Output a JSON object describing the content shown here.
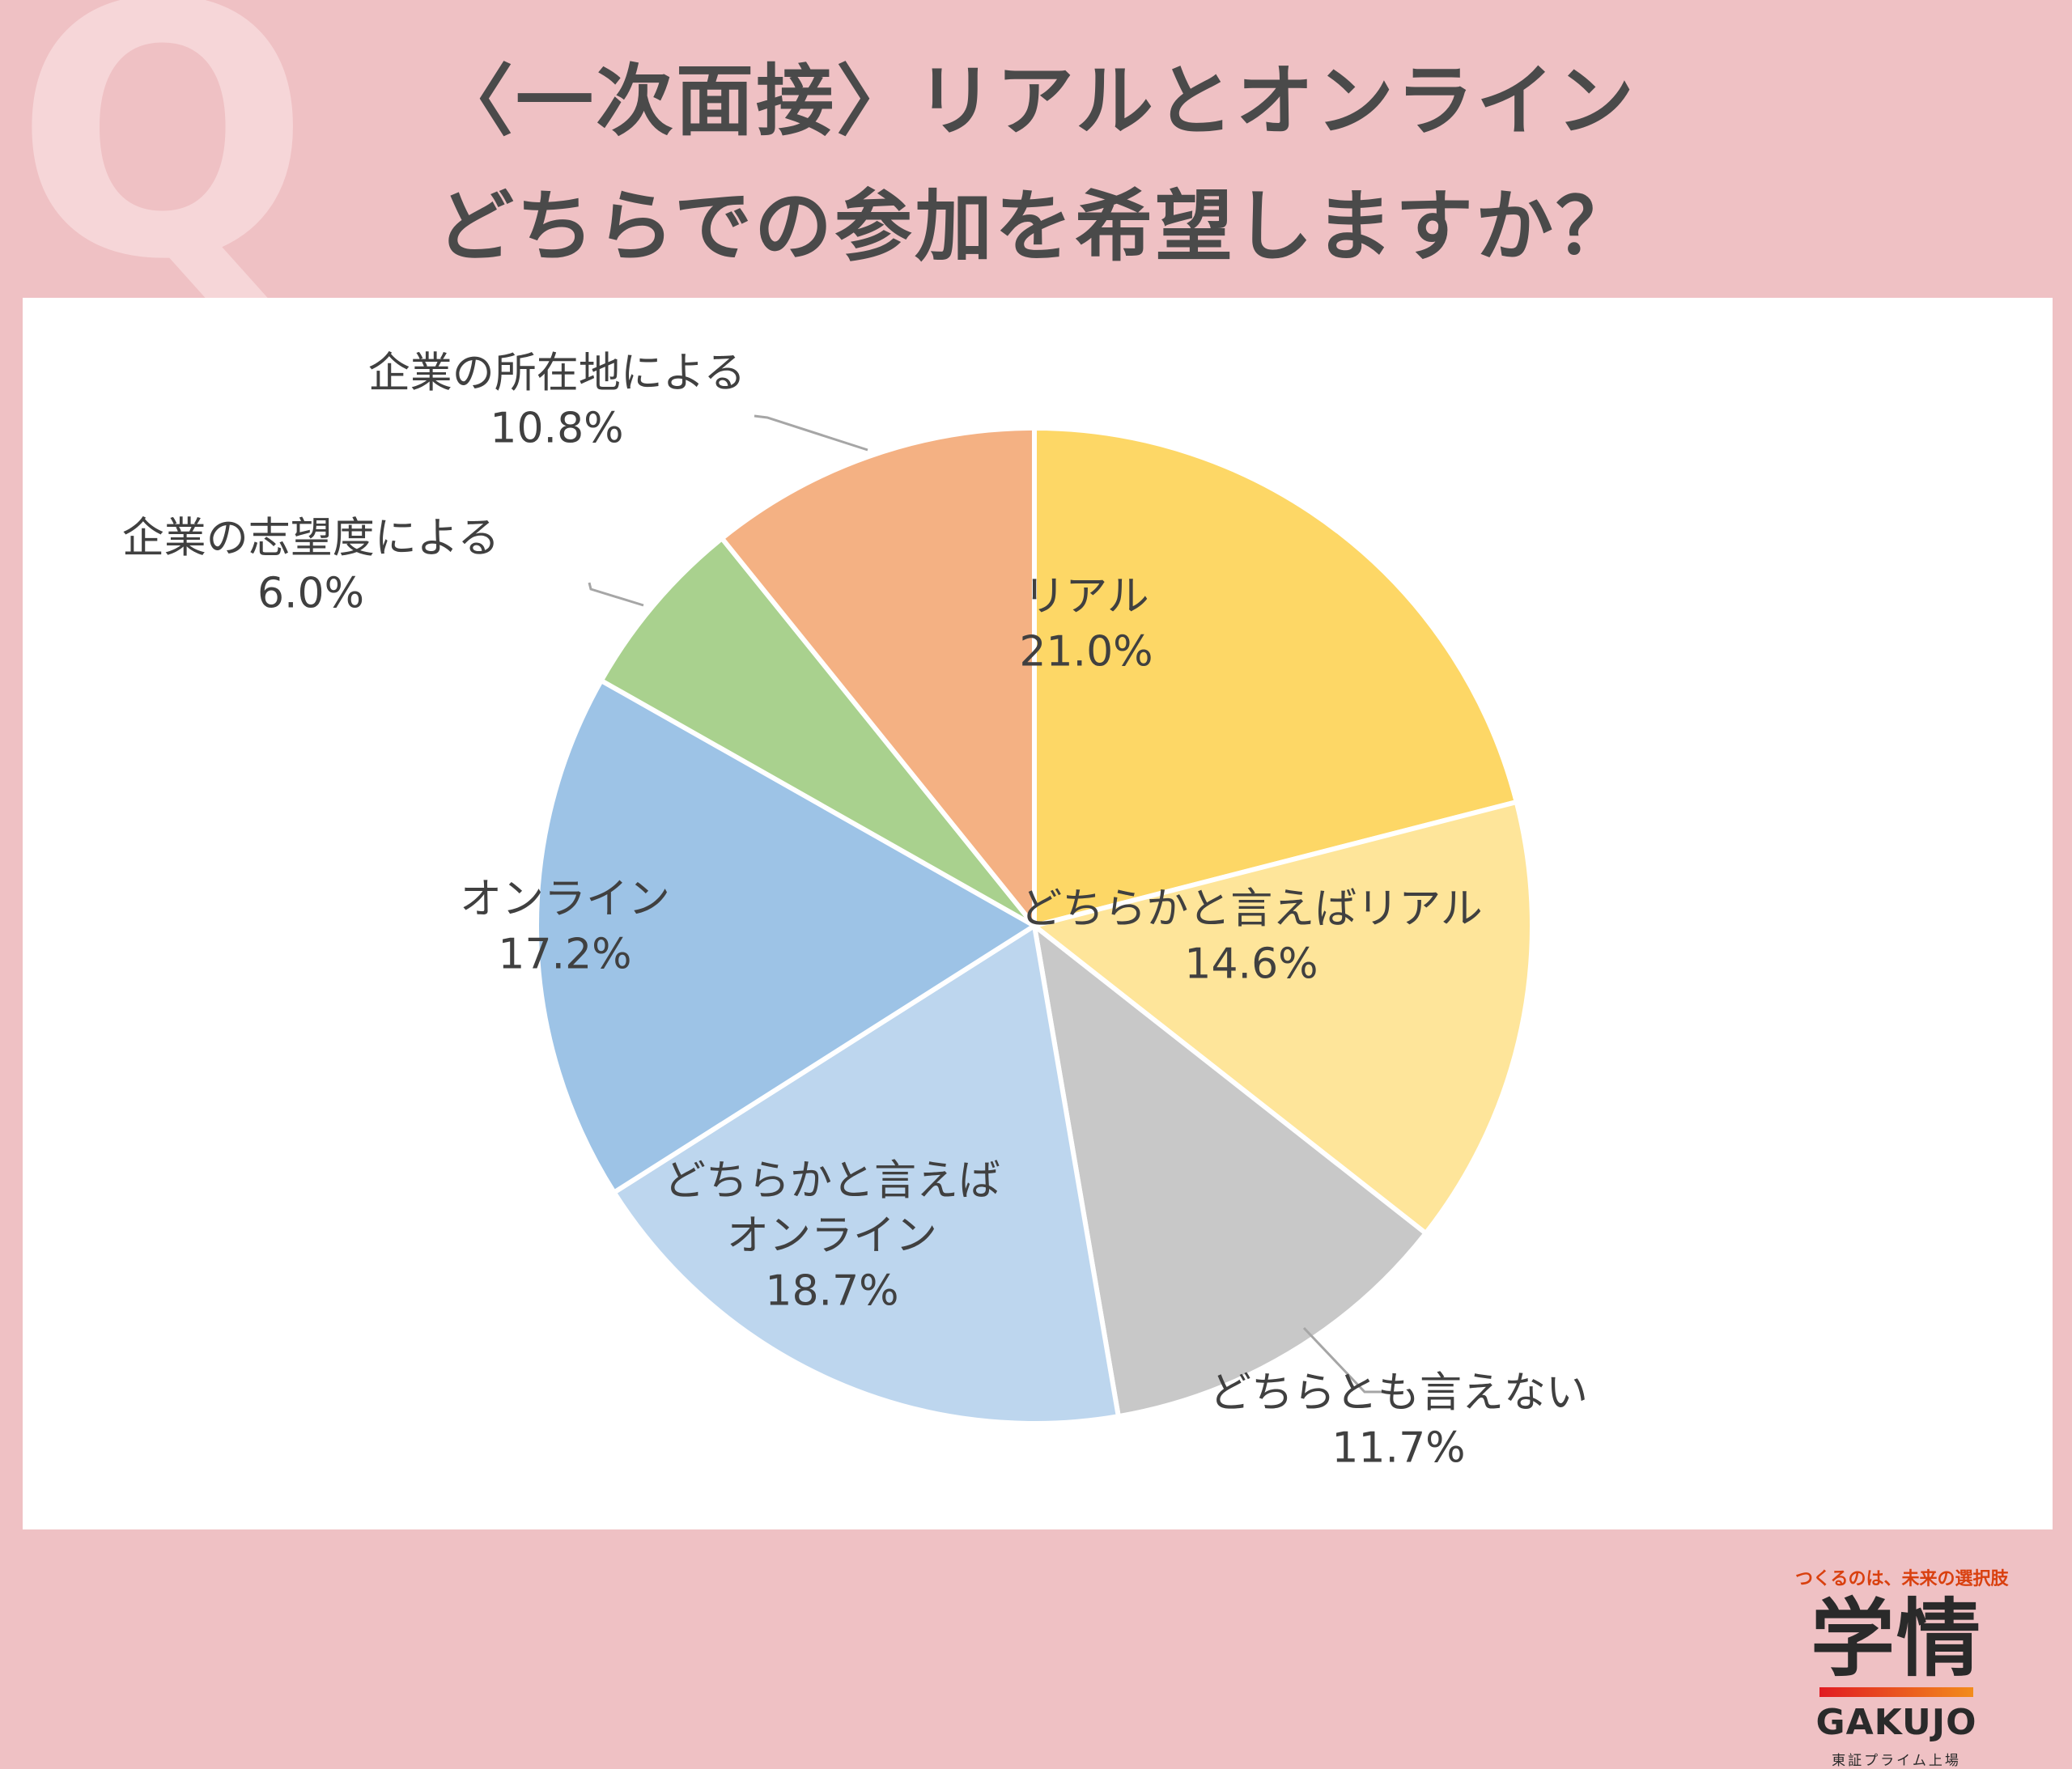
{
  "header": {
    "q_mark": "Q",
    "title_line1": "〈一次面接〉リアルとオンライン",
    "title_line2": "どちらでの参加を希望しますか？"
  },
  "chart_data": {
    "type": "pie",
    "slices": [
      {
        "label": "リアル",
        "value": 21.0,
        "display": "21.0%",
        "color": "#fdd766"
      },
      {
        "label": "どちらかと言えばリアル",
        "value": 14.6,
        "display": "14.6%",
        "color": "#fee59a"
      },
      {
        "label": "どちらとも言えない",
        "value": 11.7,
        "display": "11.7%",
        "color": "#c8c8c8"
      },
      {
        "label": "どちらかと言えば\nオンライン",
        "value": 18.7,
        "display": "18.7%",
        "color": "#bdd6ee"
      },
      {
        "label": "オンライン",
        "value": 17.2,
        "display": "17.2%",
        "color": "#9dc3e6"
      },
      {
        "label": "企業の志望度による",
        "value": 6.0,
        "display": "6.0%",
        "color": "#a9d18e"
      },
      {
        "label": "企業の所在地による",
        "value": 10.8,
        "display": "10.8%",
        "color": "#f4b183"
      }
    ]
  },
  "logo": {
    "tagline": "つくるのは、未来の選択肢",
    "kanji": "学情",
    "english": "GAKUJO",
    "listing": "東証プライム上場"
  }
}
